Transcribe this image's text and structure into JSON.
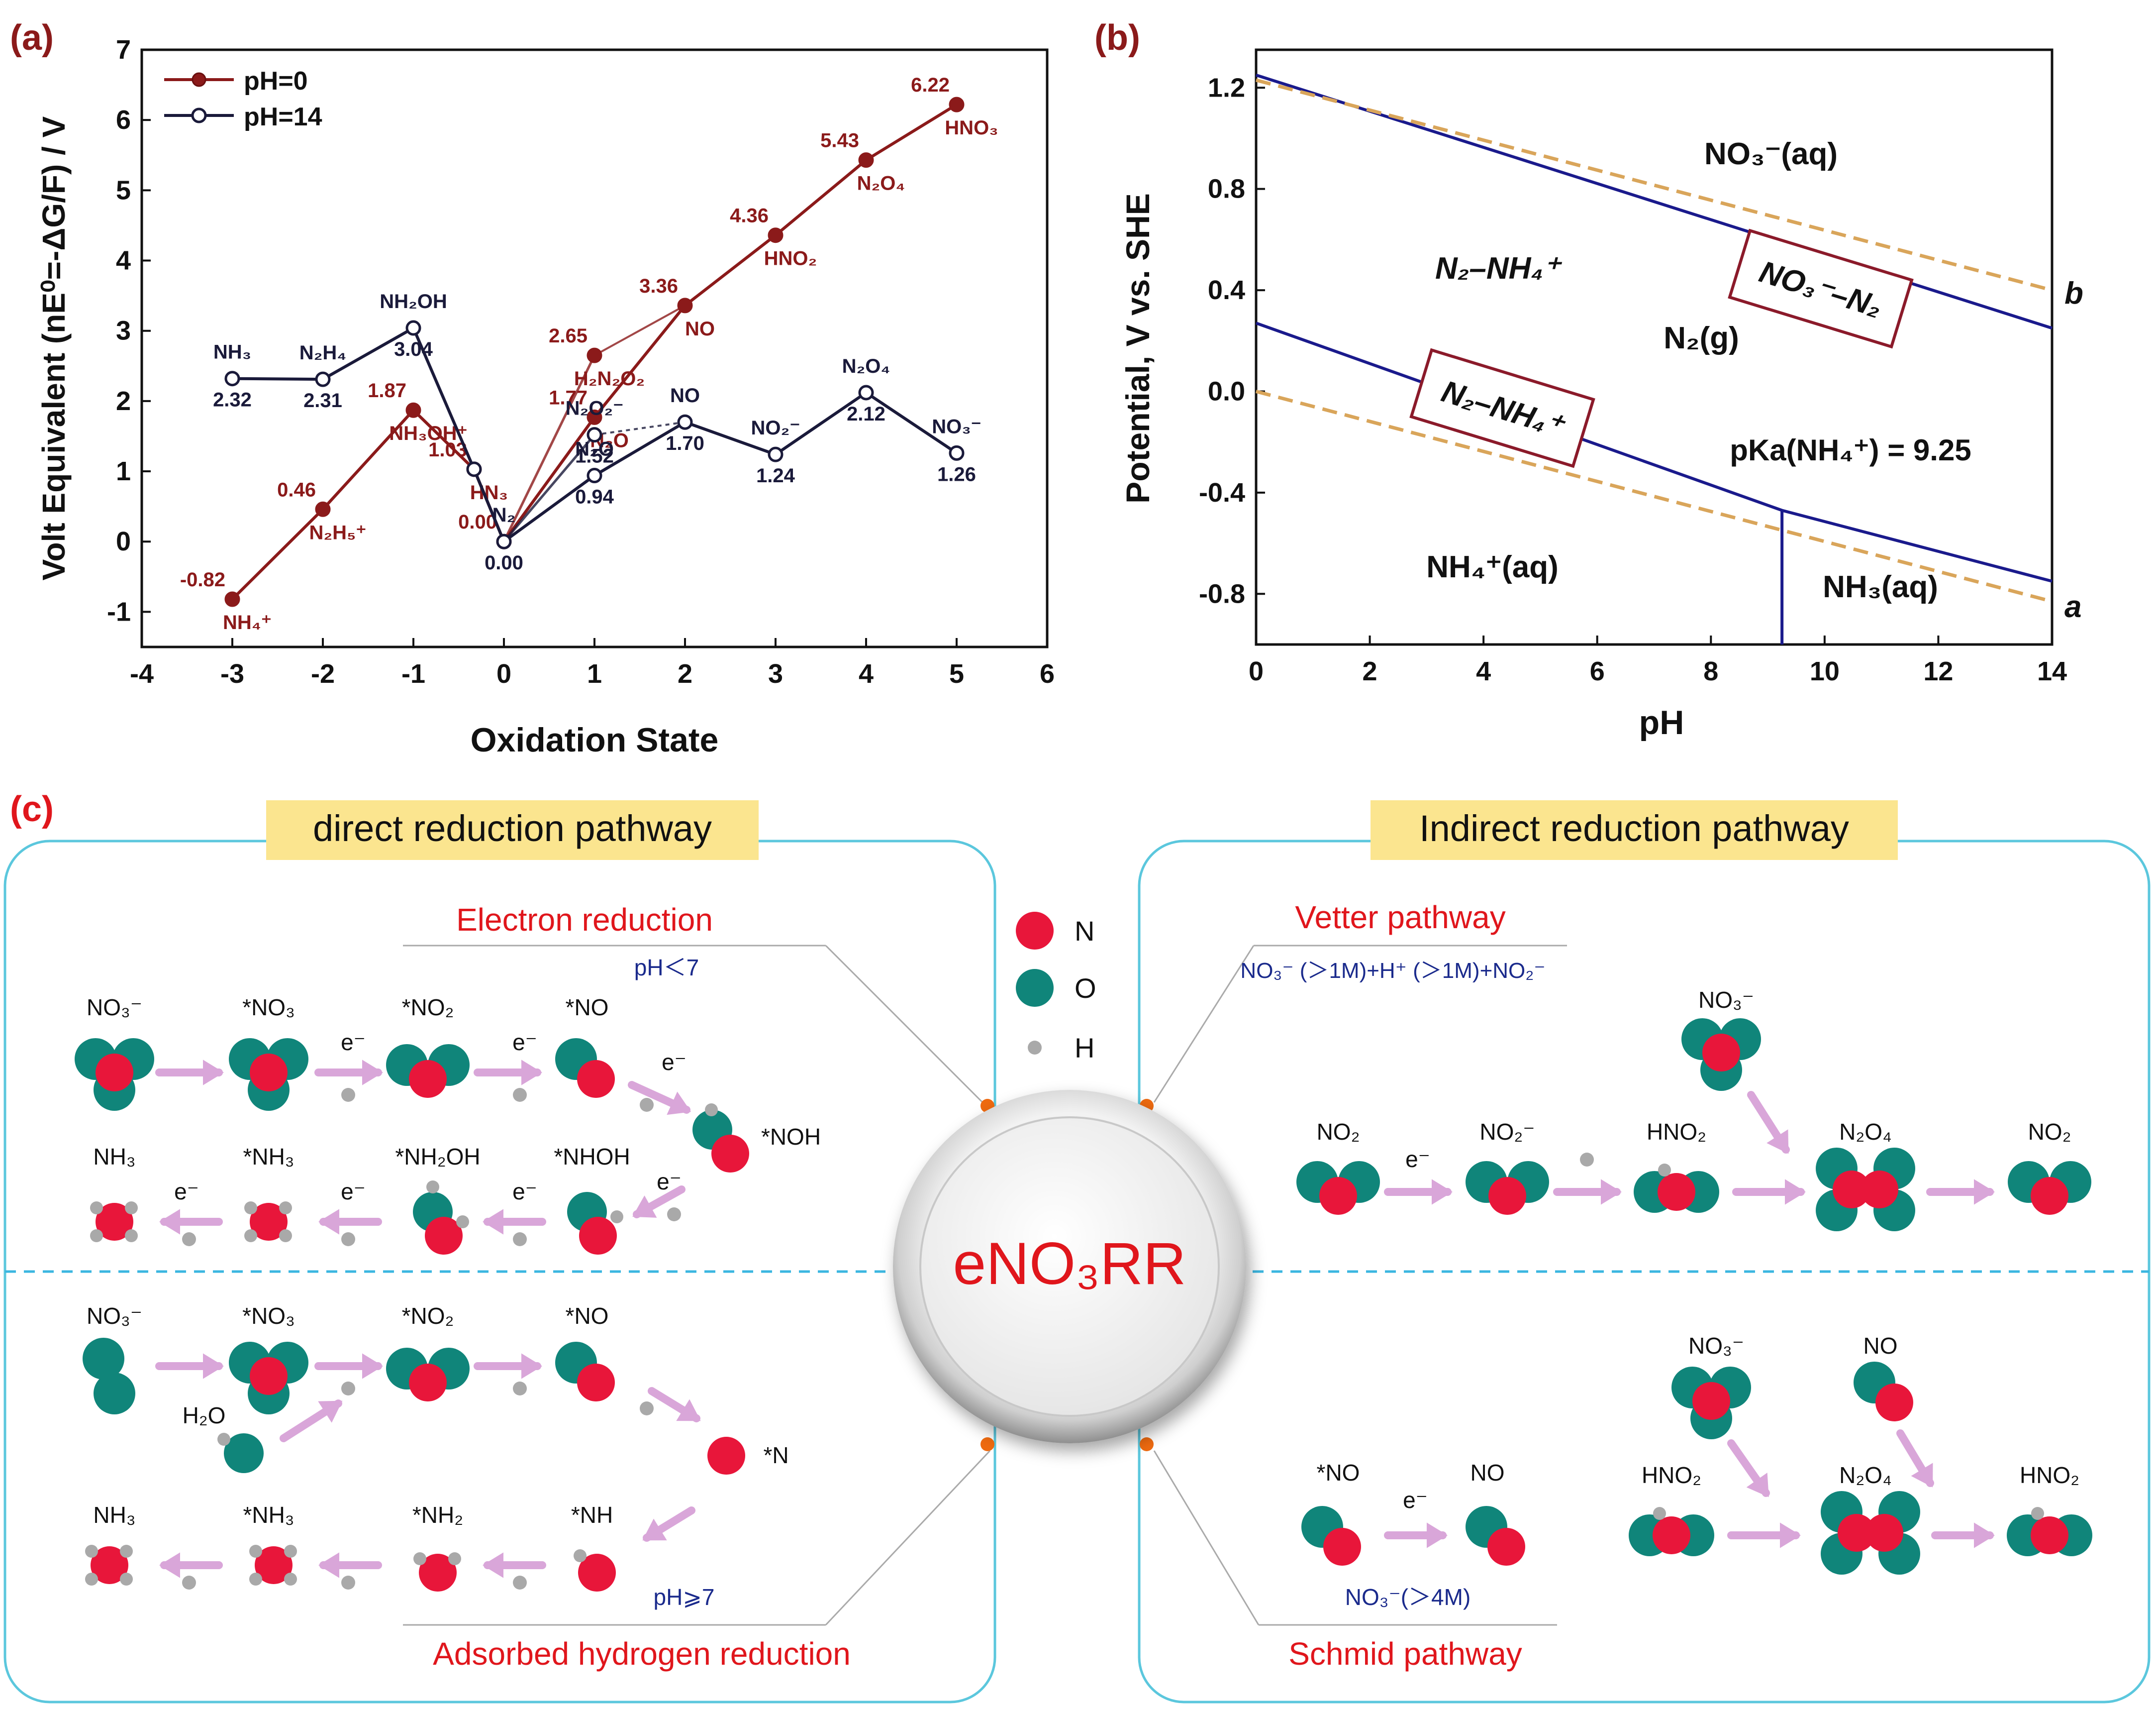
{
  "panels": {
    "a": {
      "label": "(a)"
    },
    "b": {
      "label": "(b)"
    },
    "c": {
      "label": "(c)"
    }
  },
  "colors": {
    "red_series": "#8b1a1a",
    "black_series": "#1a1a3a",
    "blue_line": "#1a1a8c",
    "dash_line": "#d9a55a",
    "panel_label": "#8b1a1a",
    "title_red": "#e0161c",
    "pathway_bg": "#fbe58f",
    "box_border": "#5bc7dd",
    "atom_N": "#e8163a",
    "atom_O": "#10857a",
    "atom_H": "#a9a9a9",
    "arrow": "#d9a6d9",
    "dot": "#ee6a10",
    "note_blue": "#1a2a8c"
  },
  "chart_data": [
    {
      "type": "line",
      "title": "(a)",
      "xlabel": "Oxidation State",
      "ylabel": "Volt Equivalent (nE⁰=-ΔG/F) / V",
      "xlim": [
        -4,
        6
      ],
      "ylim": [
        -1.5,
        7
      ],
      "xticks": [
        -4,
        -3,
        -2,
        -1,
        0,
        1,
        2,
        3,
        4,
        5,
        6
      ],
      "yticks": [
        -1,
        0,
        1,
        2,
        3,
        4,
        5,
        6,
        7
      ],
      "legend": [
        "pH=0",
        "pH=14"
      ],
      "series": [
        {
          "name": "pH=0",
          "points": [
            {
              "x": -3,
              "y": -0.82,
              "label": "-0.82",
              "species": "NH₄⁺"
            },
            {
              "x": -2,
              "y": 0.46,
              "label": "0.46",
              "species": "N₂H₅⁺"
            },
            {
              "x": -1,
              "y": 1.87,
              "label": "1.87",
              "species": "NH₃OH⁺"
            },
            {
              "x": -0.33,
              "y": 1.03,
              "label": "1.03",
              "species": "HN₃"
            },
            {
              "x": 0,
              "y": 0.0,
              "label": "0.00",
              "species": ""
            },
            {
              "x": 1,
              "y": 1.77,
              "label": "1.77",
              "species": "N₂O"
            },
            {
              "x": 2,
              "y": 3.36,
              "label": "3.36",
              "species": "NO"
            },
            {
              "x": 3,
              "y": 4.36,
              "label": "4.36",
              "species": "HNO₂"
            },
            {
              "x": 4,
              "y": 5.43,
              "label": "5.43",
              "species": "N₂O₄"
            },
            {
              "x": 5,
              "y": 6.22,
              "label": "6.22",
              "species": "HNO₃"
            }
          ],
          "extra_points": [
            {
              "x": 1,
              "y": 2.65,
              "label": "2.65",
              "species": "H₂N₂O₂"
            }
          ]
        },
        {
          "name": "pH=14",
          "points": [
            {
              "x": -3,
              "y": 2.32,
              "label": "2.32",
              "species": "NH₃"
            },
            {
              "x": -2,
              "y": 2.31,
              "label": "2.31",
              "species": "N₂H₄"
            },
            {
              "x": -1,
              "y": 3.04,
              "label": "3.04",
              "species": "NH₂OH"
            },
            {
              "x": -0.33,
              "y": 1.03,
              "label": "",
              "species": ""
            },
            {
              "x": 0,
              "y": 0.0,
              "label": "0.00",
              "species": "N₂"
            },
            {
              "x": 1,
              "y": 0.94,
              "label": "0.94",
              "species": "N₂O"
            },
            {
              "x": 2,
              "y": 1.7,
              "label": "1.70",
              "species": "NO"
            },
            {
              "x": 3,
              "y": 1.24,
              "label": "1.24",
              "species": "NO₂⁻"
            },
            {
              "x": 4,
              "y": 2.12,
              "label": "2.12",
              "species": "N₂O₄"
            },
            {
              "x": 5,
              "y": 1.26,
              "label": "1.26",
              "species": "NO₃⁻"
            }
          ],
          "extra_points": [
            {
              "x": 1,
              "y": 1.52,
              "label": "1.52",
              "species": "N₂O₂⁻"
            }
          ]
        }
      ]
    },
    {
      "type": "line",
      "title": "(b)",
      "xlabel": "pH",
      "ylabel": "Potential, V vs. SHE",
      "xlim": [
        0,
        14
      ],
      "ylim": [
        -1.0,
        1.35
      ],
      "xticks": [
        0,
        2,
        4,
        6,
        8,
        10,
        12,
        14
      ],
      "yticks": [
        -0.8,
        -0.4,
        0.0,
        0.4,
        0.8,
        1.2
      ],
      "series": [
        {
          "name": "NO₃⁻–N₂",
          "x": [
            0,
            14
          ],
          "y": [
            1.25,
            0.25
          ]
        },
        {
          "name": "N₂–NH₄⁺",
          "x": [
            0,
            9.25,
            14
          ],
          "y": [
            0.27,
            -0.47,
            -0.75
          ]
        },
        {
          "name": "pKa",
          "x": [
            9.25,
            9.25
          ],
          "y": [
            -0.47,
            -1.0
          ]
        },
        {
          "name": "b",
          "x": [
            0,
            14
          ],
          "y": [
            1.23,
            0.4
          ]
        },
        {
          "name": "a",
          "x": [
            0,
            14
          ],
          "y": [
            0.0,
            -0.83
          ]
        }
      ],
      "regions": {
        "no3": "NO₃⁻(aq)",
        "n2nh4": "N₂–NH₄⁺",
        "n2g": "N₂(g)",
        "nh4": "NH₄⁺(aq)",
        "nh3": "NH₃(aq)",
        "pka": "pKa(NH₄⁺) = 9.25",
        "box_top": "NO₃⁻–N₂",
        "box_bot": "N₂–NH₄⁺",
        "line_b": "b",
        "line_a": "a"
      }
    }
  ],
  "panel_c": {
    "direct_title": "direct reduction pathway",
    "indirect_title": "Indirect reduction pathway",
    "electron_reduction": "Electron reduction",
    "ph_lt7": "pH＜7",
    "adsorbed_h": "Adsorbed hydrogen reduction",
    "ph_ge7": "pH⩾7",
    "vetter": "Vetter pathway",
    "vetter_cond": "NO₃⁻ (＞1M)+H⁺ (＞1M)+NO₂⁻",
    "schmid": "Schmid pathway",
    "schmid_cond": "NO₃⁻(＞4M)",
    "center": "eNO₃RR",
    "legend": {
      "n": "N",
      "o": "O",
      "h": "H"
    },
    "electron": "e⁻",
    "direct_top_row": [
      "NO₃⁻",
      "*NO₃",
      "*NO₂",
      "*NO"
    ],
    "direct_noh": "*NOH",
    "direct_mid_row": [
      "NH₃",
      "*NH₃",
      "*NH₂OH",
      "*NHOH"
    ],
    "adsorbed_top_row": [
      "NO₃⁻",
      "*NO₃",
      "*NO₂",
      "*NO"
    ],
    "h2o": "H₂O",
    "n_star": "*N",
    "adsorbed_bot_row": [
      "NH₃",
      "*NH₃",
      "*NH₂",
      "*NH"
    ],
    "vetter_row": [
      "NO₂",
      "NO₂⁻",
      "HNO₂",
      "N₂O₄",
      "NO₂"
    ],
    "vetter_top": "NO₃⁻",
    "schmid_left": [
      "*NO",
      "NO"
    ],
    "schmid_top": [
      "NO₃⁻",
      "NO"
    ],
    "schmid_row": [
      "HNO₂",
      "N₂O₄",
      "HNO₂"
    ]
  }
}
